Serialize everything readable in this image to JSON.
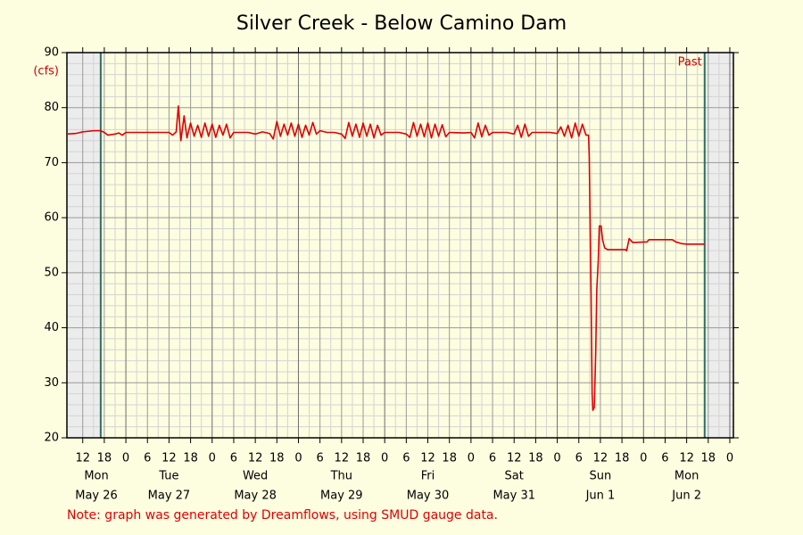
{
  "chart_data": {
    "type": "line",
    "title": "Silver Creek - Below Camino Dam",
    "y_label": "(cfs)",
    "note": "Note: graph was generated by Dreamflows, using SMUD gauge data.",
    "past_label": "Past",
    "past_window": [
      17,
      185
    ],
    "xlim": [
      7.6,
      193
    ],
    "ylim": [
      20,
      90
    ],
    "yticks": [
      20,
      30,
      40,
      50,
      60,
      70,
      80,
      90
    ],
    "grid": true,
    "xticks": [
      {
        "value": 12,
        "label": "12"
      },
      {
        "value": 18,
        "label": "18"
      },
      {
        "value": 24,
        "label": "0"
      },
      {
        "value": 30,
        "label": "6"
      },
      {
        "value": 36,
        "label": "12"
      },
      {
        "value": 42,
        "label": "18"
      },
      {
        "value": 48,
        "label": "0"
      },
      {
        "value": 54,
        "label": "6"
      },
      {
        "value": 60,
        "label": "12"
      },
      {
        "value": 66,
        "label": "18"
      },
      {
        "value": 72,
        "label": "0"
      },
      {
        "value": 78,
        "label": "6"
      },
      {
        "value": 84,
        "label": "12"
      },
      {
        "value": 90,
        "label": "18"
      },
      {
        "value": 96,
        "label": "0"
      },
      {
        "value": 102,
        "label": "6"
      },
      {
        "value": 108,
        "label": "12"
      },
      {
        "value": 114,
        "label": "18"
      },
      {
        "value": 120,
        "label": "0"
      },
      {
        "value": 126,
        "label": "6"
      },
      {
        "value": 132,
        "label": "12"
      },
      {
        "value": 138,
        "label": "18"
      },
      {
        "value": 144,
        "label": "0"
      },
      {
        "value": 150,
        "label": "6"
      },
      {
        "value": 156,
        "label": "12"
      },
      {
        "value": 162,
        "label": "18"
      },
      {
        "value": 168,
        "label": "0"
      },
      {
        "value": 174,
        "label": "6"
      },
      {
        "value": 180,
        "label": "12"
      },
      {
        "value": 186,
        "label": "18"
      },
      {
        "value": 192,
        "label": "0"
      }
    ],
    "day_labels": [
      {
        "value": 15.8,
        "weekday": "Mon",
        "date": "May 26"
      },
      {
        "value": 36,
        "weekday": "Tue",
        "date": "May 27"
      },
      {
        "value": 60,
        "weekday": "Wed",
        "date": "May 28"
      },
      {
        "value": 84,
        "weekday": "Thu",
        "date": "May 29"
      },
      {
        "value": 108,
        "weekday": "Fri",
        "date": "May 30"
      },
      {
        "value": 132,
        "weekday": "Sat",
        "date": "May 31"
      },
      {
        "value": 156,
        "weekday": "Sun",
        "date": "Jun 1"
      },
      {
        "value": 180,
        "weekday": "Mon",
        "date": "Jun 2"
      }
    ],
    "series": [
      {
        "color": "#e00000",
        "x": [
          7.6,
          10,
          12,
          15,
          17,
          18,
          19,
          21,
          22,
          23,
          24,
          30,
          36,
          37,
          38,
          38.6,
          39.3,
          40.2,
          41,
          42,
          43,
          44,
          45,
          46,
          47,
          48,
          49,
          50,
          51,
          52,
          53,
          54,
          58,
          60,
          62,
          64,
          65,
          66,
          67,
          68,
          69,
          70,
          71,
          72,
          73,
          74,
          75,
          76,
          77,
          78,
          80,
          82,
          84,
          85,
          86,
          87,
          88,
          89,
          90,
          91,
          92,
          93,
          94,
          95,
          96,
          100,
          102,
          103,
          104,
          105,
          106,
          107,
          108,
          109,
          110,
          111,
          112,
          113,
          114,
          118,
          120,
          121,
          122,
          123,
          124,
          125,
          126,
          130,
          132,
          133,
          134,
          135,
          136,
          137,
          142,
          144,
          145,
          146,
          147,
          148,
          149,
          150,
          151,
          152,
          152.7,
          152.9,
          153.4,
          153.7,
          153.9,
          154.3,
          154.7,
          155,
          155.4,
          155.7,
          156.2,
          156.6,
          157.2,
          158,
          163,
          163.3,
          164,
          165,
          169,
          169.5,
          176,
          177,
          178.5,
          180,
          185
        ],
        "values": [
          75.2,
          75.3,
          75.6,
          75.8,
          75.8,
          75.5,
          75.0,
          75.2,
          75.4,
          75.0,
          75.5,
          75.5,
          75.5,
          75.0,
          75.6,
          80.3,
          74.0,
          78.5,
          74.5,
          77.2,
          74.8,
          76.8,
          74.6,
          77.2,
          74.8,
          77.0,
          74.6,
          76.8,
          75.0,
          77.0,
          74.5,
          75.5,
          75.5,
          75.2,
          75.6,
          75.3,
          74.3,
          77.5,
          74.8,
          77.0,
          75.0,
          77.2,
          74.8,
          77.0,
          74.6,
          76.8,
          75.0,
          77.3,
          75.2,
          75.8,
          75.5,
          75.5,
          75.2,
          74.4,
          77.3,
          74.8,
          77.0,
          74.6,
          77.2,
          74.8,
          77.0,
          74.5,
          76.8,
          75.0,
          75.5,
          75.5,
          75.2,
          74.6,
          77.3,
          74.8,
          77.0,
          74.7,
          77.2,
          74.5,
          77.0,
          74.8,
          76.9,
          74.7,
          75.5,
          75.4,
          75.5,
          74.5,
          77.2,
          74.7,
          76.8,
          75.0,
          75.5,
          75.5,
          75.2,
          76.8,
          74.6,
          77.0,
          74.8,
          75.5,
          75.5,
          75.3,
          76.5,
          74.8,
          76.8,
          74.5,
          77.2,
          74.8,
          77.0,
          75.0,
          75.0,
          71.2,
          46,
          28,
          25,
          25.5,
          35.5,
          47,
          52,
          58.5,
          58.5,
          56,
          54.5,
          54.2,
          54.2,
          54.0,
          56.2,
          55.5,
          55.6,
          56.0,
          56.0,
          55.6,
          55.3,
          55.2,
          55.2
        ]
      }
    ]
  }
}
